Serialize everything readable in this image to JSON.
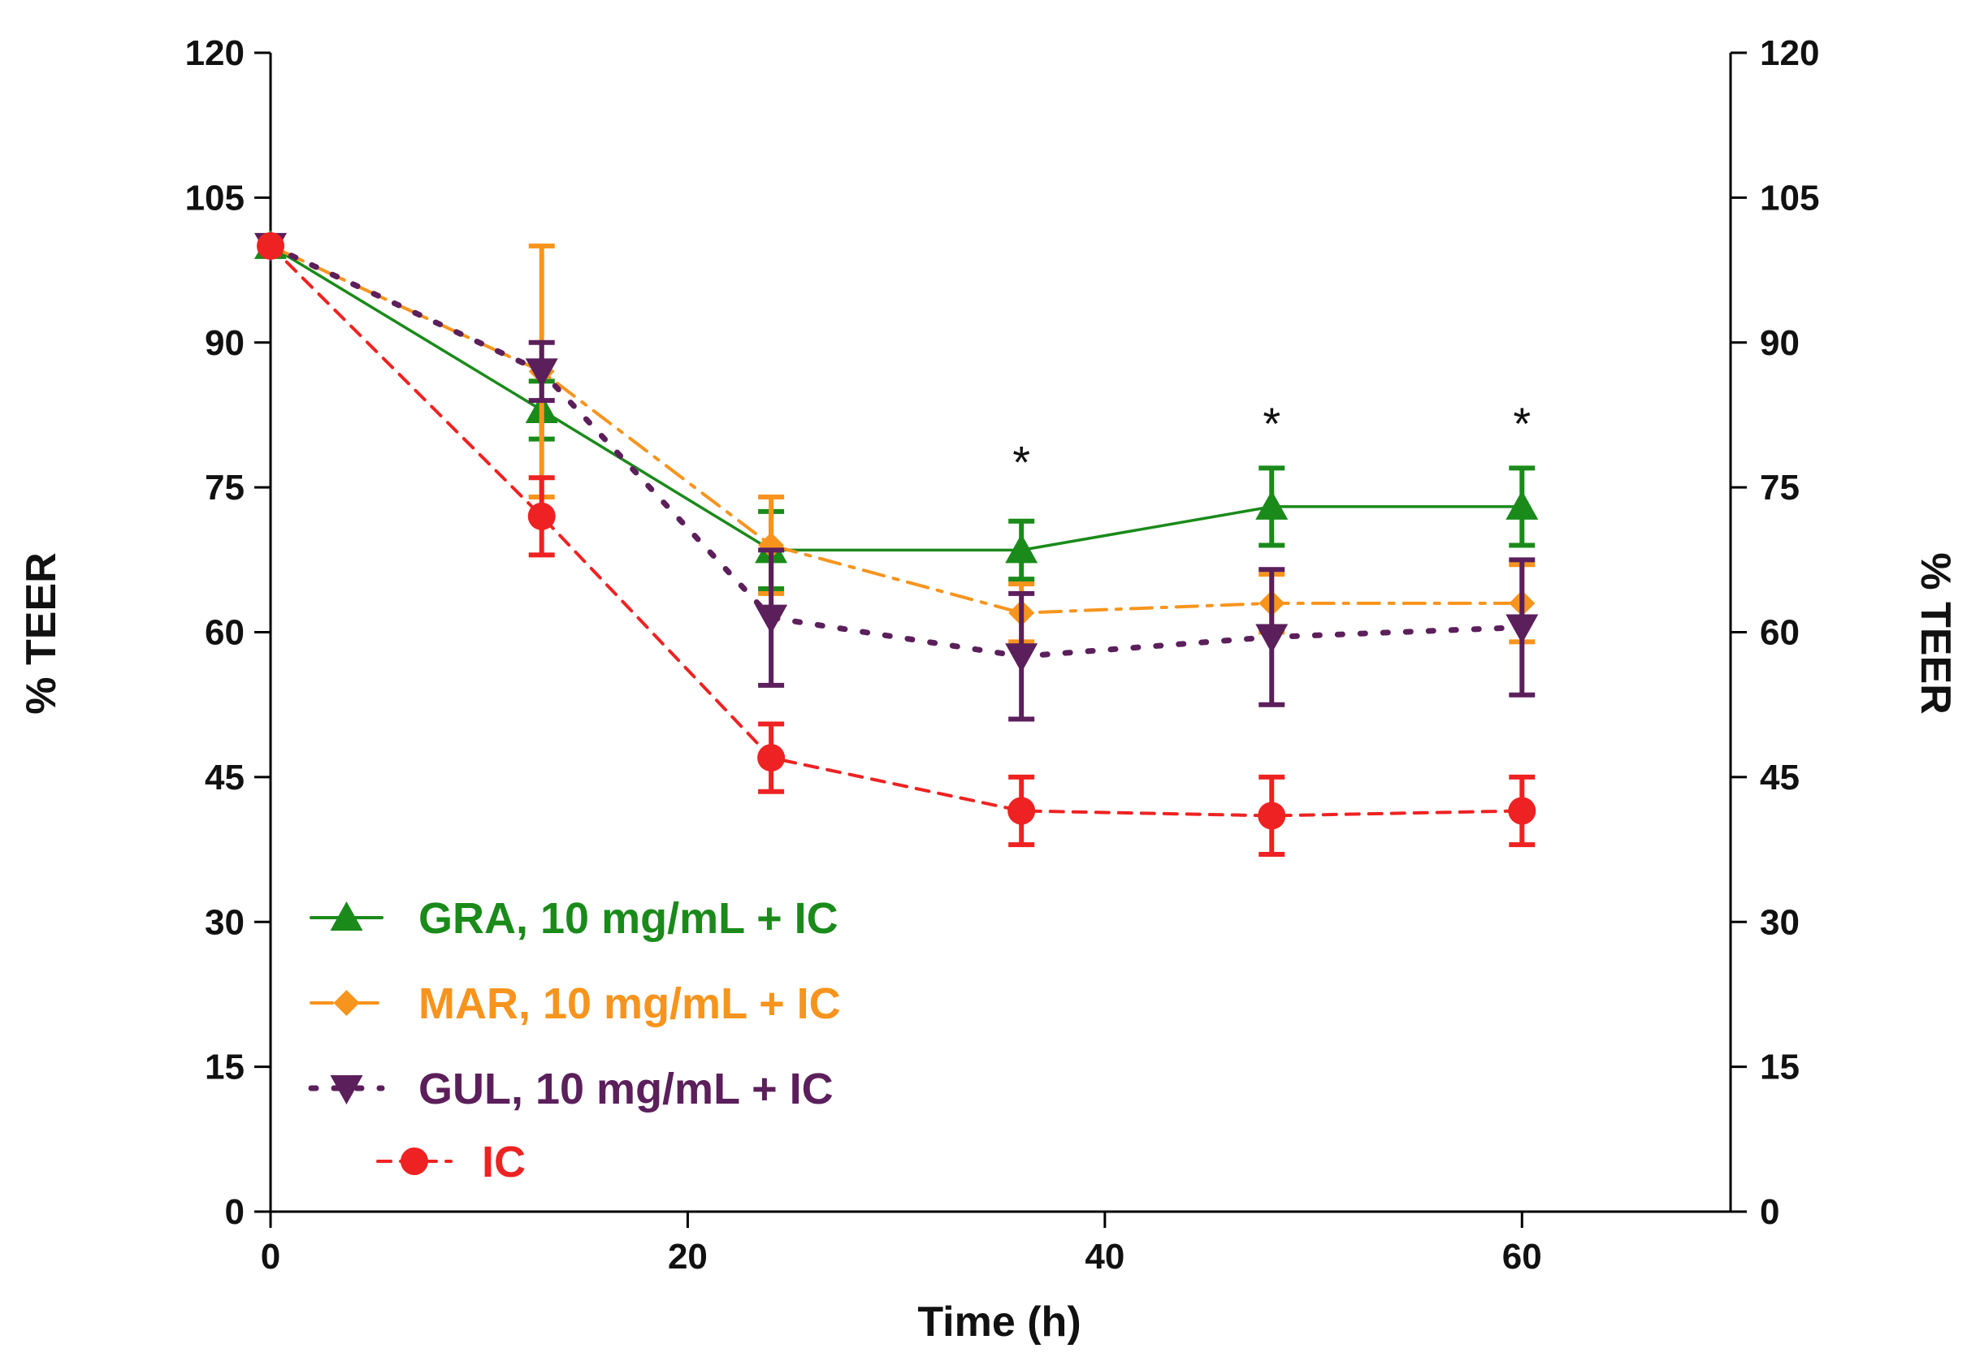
{
  "chart_data": {
    "type": "line",
    "xlabel": "Time (h)",
    "ylabel": "% TEER",
    "ylabel_right": "% TEER",
    "xlim": [
      0,
      70
    ],
    "ylim": [
      0,
      120
    ],
    "xticks": [
      "0",
      "20",
      "40",
      "60"
    ],
    "yticks": [
      "0",
      "15",
      "30",
      "45",
      "60",
      "75",
      "90",
      "105",
      "120"
    ],
    "grid": false,
    "legend_position": "bottom-left",
    "x": [
      0,
      13,
      24,
      36,
      48,
      60
    ],
    "series": [
      {
        "name": "GRA, 10 mg/mL + IC",
        "color": "#1a8a1a",
        "marker": "triangle-up",
        "line": "solid",
        "values": [
          100,
          83,
          68.5,
          68.5,
          73,
          73
        ],
        "errors": [
          0,
          3,
          4,
          3,
          4,
          4
        ]
      },
      {
        "name": "MAR, 10 mg/mL + IC",
        "color": "#f7941d",
        "marker": "diamond",
        "line": "dash-dot",
        "values": [
          100,
          87,
          69,
          62,
          63,
          63
        ],
        "errors": [
          0,
          13,
          5,
          3,
          3,
          4
        ]
      },
      {
        "name": "GUL, 10 mg/mL + IC",
        "color": "#5b1f5b",
        "marker": "triangle-down",
        "line": "dotted",
        "values": [
          100,
          87,
          61.5,
          57.5,
          59.5,
          60.5
        ],
        "errors": [
          0,
          3,
          7,
          6.5,
          7,
          7
        ]
      },
      {
        "name": "IC",
        "color": "#ee2222",
        "marker": "circle",
        "line": "dashed",
        "values": [
          100,
          72,
          47,
          41.5,
          41,
          41.5
        ],
        "errors": [
          0,
          4,
          3.5,
          3.5,
          4,
          3.5
        ]
      }
    ],
    "annotations": [
      {
        "text": "*",
        "x": 36,
        "y": 78
      },
      {
        "text": "*",
        "x": 48,
        "y": 82
      },
      {
        "text": "*",
        "x": 60,
        "y": 82
      }
    ]
  }
}
